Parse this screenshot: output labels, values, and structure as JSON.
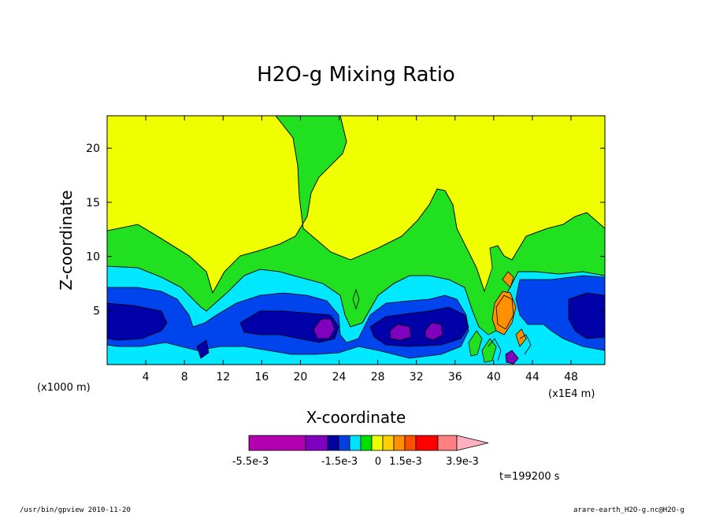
{
  "chart_data": {
    "type": "heatmap",
    "title": "H2O-g Mixing Ratio",
    "xlabel": "X-coordinate",
    "ylabel": "Z-coordinate",
    "x_unit_left": "(x1000 m)",
    "x_unit_right": "(x1E4 m)",
    "x_ticks": [
      "4",
      "8",
      "12",
      "16",
      "20",
      "24",
      "28",
      "32",
      "36",
      "40",
      "44",
      "48"
    ],
    "y_ticks": [
      "5",
      "10",
      "15",
      "20"
    ],
    "xlim": [
      0,
      51.5
    ],
    "ylim": [
      0,
      23
    ],
    "colorbar": {
      "labels": [
        "-5.5e-3",
        "-1.5e-3",
        "0",
        "1.5e-3",
        "3.9e-3"
      ],
      "colors": [
        "#b000b0",
        "#8000c0",
        "#0000a0",
        "#0040e0",
        "#00e0ff",
        "#00e000",
        "#f0ff00",
        "#ffd000",
        "#ff9000",
        "#ff5000",
        "#ff0000",
        "#ff8080",
        "#ffb0c0"
      ]
    },
    "time_label": "t=199200 s",
    "field_colors": {
      "yellow": "#f0ff00",
      "green": "#20e020",
      "cyan": "#00e8ff",
      "blue": "#0044ee",
      "darkblue": "#0000a8",
      "purple": "#8000c0",
      "orange": "#ff9000"
    }
  },
  "footer": {
    "left": "/usr/bin/gpview  2010-11-20",
    "right": "arare-earth_H2O-g.nc@H2O-g"
  }
}
